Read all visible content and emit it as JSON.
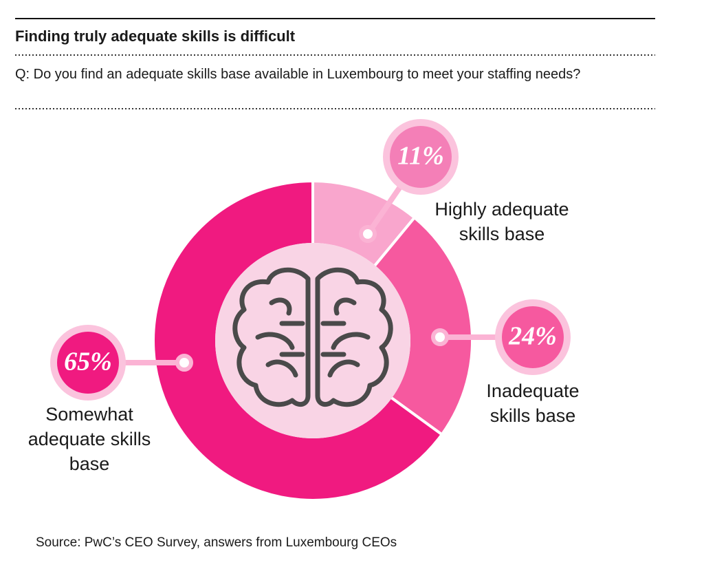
{
  "chart_data": {
    "type": "donut",
    "title": "Finding truly adequate skills is difficult",
    "subtitle": "Q: Do you find an adequate skills base available in Luxembourg to meet your staffing needs?",
    "categories": [
      "Highly adequate skills base",
      "Inadequate skills base",
      "Somewhat adequate skills base"
    ],
    "values": [
      11,
      24,
      65
    ],
    "value_labels": [
      "11%",
      "24%",
      "65%"
    ],
    "colors": [
      "#f9a6cd",
      "#f6599f",
      "#f01a80"
    ],
    "source": "Source: PwC’s CEO Survey, answers from Luxembourg CEOs"
  }
}
